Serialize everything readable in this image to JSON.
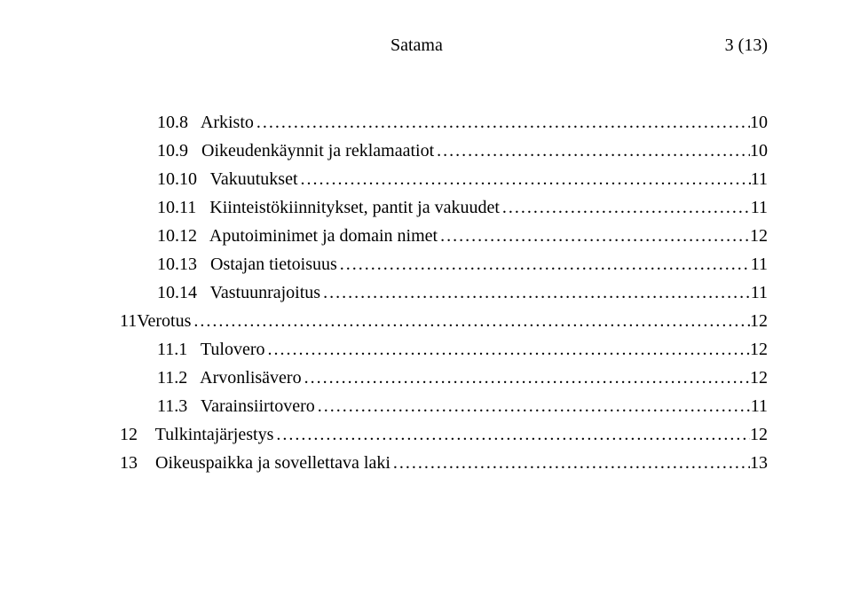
{
  "header": {
    "title": "Satama",
    "page_indicator": "3 (13)"
  },
  "toc": {
    "entries": [
      {
        "indent": 1,
        "num": "10.8",
        "title": "Arkisto",
        "page": "10"
      },
      {
        "indent": 1,
        "num": "10.9",
        "title": "Oikeudenkäynnit ja reklamaatiot",
        "page": "10"
      },
      {
        "indent": 1,
        "num": "10.10",
        "title": "Vakuutukset",
        "page": " 11"
      },
      {
        "indent": 1,
        "num": "10.11",
        "title": "Kiinteistökiinnitykset, pantit ja vakuudet",
        "page": " 11"
      },
      {
        "indent": 1,
        "num": "10.12",
        "title": "Aputoiminimet ja domain nimet",
        "page": " 12"
      },
      {
        "indent": 1,
        "num": "10.13",
        "title": "Ostajan tietoisuus",
        "page": "11"
      },
      {
        "indent": 1,
        "num": "10.14",
        "title": "Vastuunrajoitus",
        "page": "11"
      },
      {
        "indent": 0,
        "num": "11",
        "title": "Verotus",
        "page": " 12",
        "nospace": true
      },
      {
        "indent": 1,
        "num": "11.1",
        "title": "Tulovero",
        "page": " 12"
      },
      {
        "indent": 1,
        "num": "11.2",
        "title": "Arvonlisävero",
        "page": " 12"
      },
      {
        "indent": 1,
        "num": "11.3",
        "title": "Varainsiirtovero",
        "page": "11"
      },
      {
        "indent": 0,
        "num": "12",
        "title": "Tulkintajärjestys",
        "page": " 12"
      },
      {
        "indent": 0,
        "num": "13",
        "title": "Oikeuspaikka ja sovellettava laki",
        "page": " 13"
      }
    ]
  },
  "style": {
    "font_family": "Georgia, serif",
    "font_size_pt": 15,
    "text_color": "#000000",
    "background_color": "#ffffff",
    "leader_char": "."
  }
}
